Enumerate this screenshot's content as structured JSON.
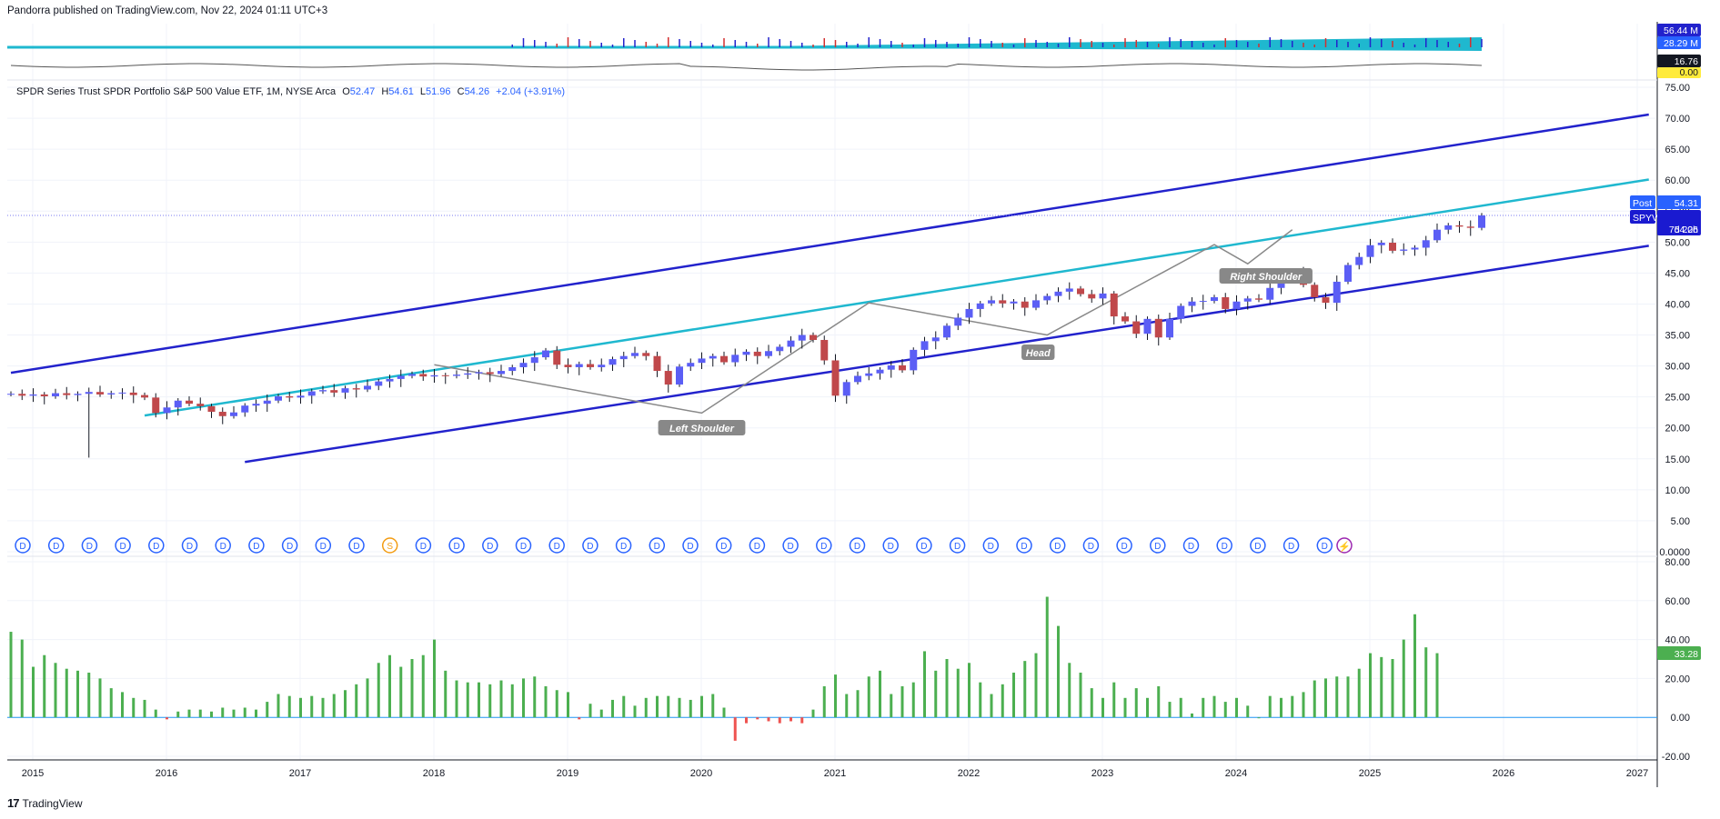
{
  "header": {
    "published": "Pandorra published on TradingView.com, Nov 22, 2024 01:11 UTC+3"
  },
  "legend": {
    "name": "SPDR Series Trust SPDR Portfolio S&P 500 Value ETF, 1M, NYSE Arca",
    "open_label": "O",
    "open": "52.47",
    "high_label": "H",
    "high": "54.61",
    "low_label": "L",
    "low": "51.96",
    "close_label": "C",
    "close": "54.26",
    "change": "+2.04 (+3.91%)"
  },
  "colors": {
    "up": "#5b5ef5",
    "down": "#c0484b",
    "channel": "#2222cc",
    "trend": "#1fb8cf",
    "pattern": "#888888",
    "hist_pos": "#4caf50",
    "hist_neg": "#ef5350"
  },
  "labels": {
    "post_tag": "Post",
    "post_price": "54.31",
    "ticker_tag": "SPYV",
    "ticker_price": "54.26",
    "countdown": "7d 20h",
    "vol_top": "56.44 M",
    "vol_mid": "28.29 M",
    "osc_val": "16.76",
    "osc_zero": "0.00",
    "hist_last": "33.28",
    "left_shoulder": "Left Shoulder",
    "head": "Head",
    "right_shoulder": "Right Shoulder",
    "dividend_marker": "D",
    "split_marker": "S",
    "brand": "TradingView",
    "brand_mark": "17"
  },
  "chart_data": {
    "type": "candlestick",
    "title": "SPDR Series Trust SPDR Portfolio S&P 500 Value ETF, 1M, NYSE Arca",
    "x_axis_ticks": [
      "2015",
      "2016",
      "2017",
      "2018",
      "2019",
      "2020",
      "2021",
      "2022",
      "2023",
      "2024",
      "2025",
      "2026",
      "2027"
    ],
    "price_axis_ticks": [
      "75.00",
      "70.00",
      "65.00",
      "60.00",
      "55.00",
      "50.00",
      "45.00",
      "40.00",
      "35.00",
      "30.00",
      "25.00",
      "20.00",
      "15.00",
      "10.00",
      "5.00",
      "0.0000"
    ],
    "price_ylim": [
      0,
      75
    ],
    "hist_axis_ticks": [
      "80.00",
      "60.00",
      "40.00",
      "20.00",
      "0.00",
      "-20.00"
    ],
    "hist_ylim": [
      -20,
      80
    ],
    "monthly_close": [
      25.5,
      25.2,
      25.4,
      25.1,
      25.6,
      25.3,
      25.5,
      25.8,
      25.4,
      25.6,
      25.7,
      25.3,
      24.9,
      22.4,
      23.3,
      24.4,
      23.9,
      23.5,
      22.6,
      21.9,
      22.5,
      23.6,
      23.9,
      24.4,
      25.1,
      24.9,
      25.2,
      25.9,
      26.1,
      25.7,
      26.4,
      26.2,
      26.8,
      27.5,
      27.9,
      28.4,
      28.7,
      28.3,
      28.5,
      28.4,
      28.6,
      28.8,
      29.0,
      28.7,
      29.2,
      29.8,
      30.5,
      31.4,
      32.5,
      30.2,
      29.8,
      30.3,
      29.8,
      30.2,
      31.1,
      31.6,
      32.1,
      31.6,
      29.2,
      27.0,
      29.9,
      30.5,
      31.2,
      31.6,
      30.6,
      31.8,
      32.3,
      31.6,
      32.4,
      33.1,
      34.1,
      35.0,
      34.2,
      30.9,
      25.2,
      27.4,
      28.4,
      28.8,
      29.4,
      30.1,
      29.3,
      32.6,
      34.0,
      34.6,
      36.5,
      37.8,
      39.2,
      40.1,
      40.6,
      40.1,
      40.4,
      39.4,
      40.6,
      41.3,
      42.0,
      42.5,
      41.6,
      40.9,
      41.7,
      38.0,
      37.2,
      35.2,
      37.6,
      34.6,
      37.6,
      39.7,
      40.4,
      40.5,
      41.1,
      39.2,
      40.4,
      40.9,
      40.7,
      42.6,
      44.8,
      45.0,
      43.1,
      41.1,
      40.2,
      43.6,
      46.3,
      47.6,
      49.5,
      49.9,
      48.6,
      48.8,
      49.1,
      50.3,
      52.0,
      52.7,
      52.5,
      52.3,
      54.3
    ],
    "hist_values": [
      44,
      40,
      26,
      32,
      28,
      25,
      24,
      23,
      20,
      15,
      13,
      10,
      9,
      4,
      -1,
      3,
      4,
      4,
      3,
      5,
      4,
      5,
      4,
      8,
      12,
      11,
      10,
      11,
      10,
      12,
      14,
      17,
      20,
      28,
      32,
      26,
      30,
      32,
      40,
      24,
      19,
      18,
      18,
      17,
      19,
      17,
      20,
      21,
      16,
      14,
      13,
      -1,
      7,
      4,
      9,
      11,
      6,
      10,
      11,
      11,
      10,
      9,
      11,
      12,
      5,
      -12,
      -3,
      -1,
      -2,
      -3,
      -2,
      -3,
      4,
      16,
      22,
      12,
      14,
      21,
      24,
      12,
      16,
      18,
      34,
      24,
      30,
      25,
      28,
      18,
      12,
      17,
      23,
      29,
      33,
      62,
      47,
      28,
      23,
      15,
      10,
      18,
      10,
      15,
      10,
      16,
      8,
      10,
      2,
      10,
      11,
      8,
      10,
      6,
      0,
      11,
      10,
      11,
      13,
      19,
      20,
      21,
      21,
      25,
      33,
      31,
      30,
      40,
      53,
      36,
      33
    ],
    "channel_upper": [
      [
        "2015-01",
        28.9
      ],
      [
        "2027-04",
        70.6
      ]
    ],
    "channel_lower": [
      [
        "2016-10",
        14.5
      ],
      [
        "2027-04",
        49.4
      ]
    ],
    "trendline": [
      [
        "2016-01",
        22.0
      ],
      [
        "2027-04",
        60.1
      ]
    ],
    "head_and_shoulders": [
      {
        "label": "Left Shoulder",
        "date": "2020-03",
        "price": 22.4
      },
      {
        "label": "Head",
        "date": "2022-10",
        "price": 35.0
      },
      {
        "label": "Right Shoulder",
        "date": "2024-04",
        "price": 46.5
      }
    ]
  }
}
